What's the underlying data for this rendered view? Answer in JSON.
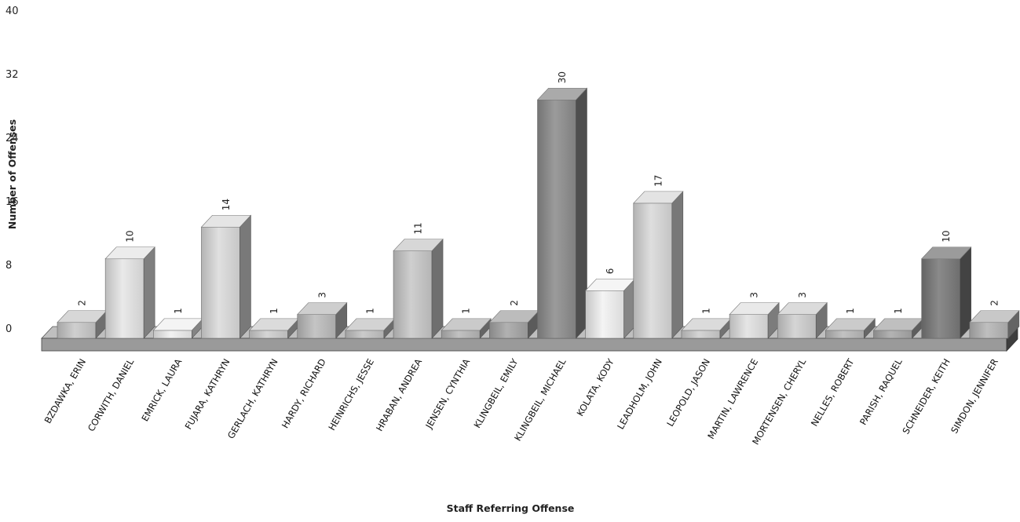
{
  "chart_data": {
    "type": "bar",
    "title": "",
    "xlabel": "Staff Referring Offense",
    "ylabel": "Number of Offenses",
    "ylim": [
      0,
      40
    ],
    "yticks": [
      0,
      8,
      16,
      24,
      32,
      40
    ],
    "categories": [
      "BZDAWKA, ERIN",
      "CORWITH, DANIEL",
      "EMRICK, LAURA",
      "FUJARA, KATHRYN",
      "GERLACH, KATHRYN",
      "HARDY, RICHARD",
      "HEINRICHS, JESSE",
      "HRABAN, ANDREA",
      "JENSEN, CYNTHIA",
      "KLINGBEIL, EMILY",
      "KLINGBEIL, MICHAEL",
      "KOLATA, KODY",
      "LEADHOLM, JOHN",
      "LEOPOLD, JASON",
      "MARTIN, LAWRENCE",
      "MORTENSEN, CHERYL",
      "NELLES, ROBERT",
      "PARISH, RAQUEL",
      "SCHNEIDER, KEITH",
      "SIMDON, JENNIFER"
    ],
    "values": [
      2,
      10,
      1,
      14,
      1,
      3,
      1,
      11,
      1,
      2,
      30,
      6,
      17,
      1,
      3,
      3,
      1,
      1,
      10,
      2
    ],
    "bar_colors": [
      "#c9c9c9",
      "#e6e6e6",
      "#f0f0f0",
      "#dcdcdc",
      "#cfcfcf",
      "#bdbdbd",
      "#c4c4c4",
      "#c9c9c9",
      "#b8b8b8",
      "#a6a6a6",
      "#8d8d8d",
      "#f2f2f2",
      "#dadada",
      "#cfcfcf",
      "#e2e2e2",
      "#cfcfcf",
      "#bababa",
      "#a9a9a9",
      "#7a7a7a",
      "#b6b6b6"
    ],
    "style": "3d-column",
    "grid": false,
    "legend": "none"
  }
}
